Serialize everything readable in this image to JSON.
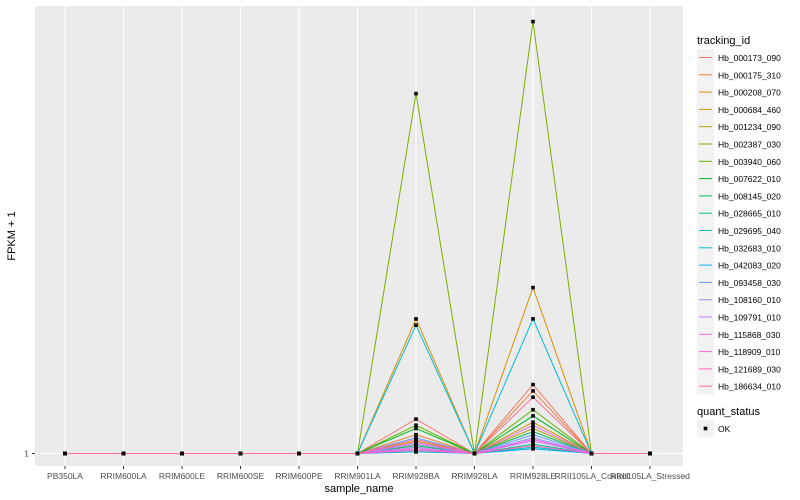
{
  "chart_data": {
    "type": "line",
    "title": "",
    "xlabel": "sample_name",
    "ylabel": "FPKM + 1",
    "categories": [
      "PB350LA",
      "RRIM600LA",
      "RRIM600LE",
      "RRIM600SE",
      "RRIM600PE",
      "RRIM901LA",
      "RRIM928BA",
      "RRIM928LA",
      "RRIM928LE",
      "RRII105LA_Control",
      "RRII105LA_Stressed"
    ],
    "y_ticks": [
      {
        "value": 1,
        "label": "1"
      }
    ],
    "ylim": [
      0.6,
      15.3
    ],
    "grid": true,
    "legend": {
      "title": "tracking_id",
      "position": "right",
      "shape_title": "quant_status",
      "shape_items": [
        "OK"
      ]
    },
    "series": [
      {
        "name": "Hb_000173_090",
        "color": "#F8766D",
        "values": [
          1,
          1,
          1,
          1,
          1,
          1,
          2.1,
          1,
          3.2,
          1,
          1
        ]
      },
      {
        "name": "Hb_000175_310",
        "color": "#EC8239",
        "values": [
          1,
          1,
          1,
          1,
          1,
          1,
          1.6,
          1,
          3.0,
          1,
          1
        ]
      },
      {
        "name": "Hb_000208_070",
        "color": "#DB8E00",
        "values": [
          1,
          1,
          1,
          1,
          1,
          1,
          5.3,
          1,
          6.3,
          1,
          1
        ]
      },
      {
        "name": "Hb_000684_460",
        "color": "#C79800",
        "values": [
          1,
          1,
          1,
          1,
          1,
          1,
          1.4,
          1,
          2.0,
          1,
          1
        ]
      },
      {
        "name": "Hb_001234_090",
        "color": "#AFA100",
        "values": [
          1,
          1,
          1,
          1,
          1,
          1,
          1.3,
          1,
          1.8,
          1,
          1
        ]
      },
      {
        "name": "Hb_002387_030",
        "color": "#7CAE00",
        "values": [
          1,
          1,
          1,
          1,
          1,
          1,
          12.5,
          1,
          14.8,
          1,
          1
        ]
      },
      {
        "name": "Hb_003940_060",
        "color": "#64B200",
        "values": [
          1,
          1,
          1,
          1,
          1,
          1,
          1.9,
          1,
          2.4,
          1,
          1
        ]
      },
      {
        "name": "Hb_007622_010",
        "color": "#00B81F",
        "values": [
          1,
          1,
          1,
          1,
          1,
          1,
          1.8,
          1,
          2.2,
          1,
          1
        ]
      },
      {
        "name": "Hb_008145_020",
        "color": "#00BC59",
        "values": [
          1,
          1,
          1,
          1,
          1,
          1,
          1.25,
          1,
          1.7,
          1,
          1
        ]
      },
      {
        "name": "Hb_028665_010",
        "color": "#00BF7D",
        "values": [
          1,
          1,
          1,
          1,
          1,
          1,
          1.15,
          1,
          1.3,
          1,
          1
        ]
      },
      {
        "name": "Hb_029695_040",
        "color": "#00C0B8",
        "values": [
          1,
          1,
          1,
          1,
          1,
          1,
          1.1,
          1,
          1.2,
          1,
          1
        ]
      },
      {
        "name": "Hb_032683_010",
        "color": "#00BCD8",
        "values": [
          1,
          1,
          1,
          1,
          1,
          1,
          5.1,
          1,
          5.3,
          1,
          1
        ]
      },
      {
        "name": "Hb_042083_020",
        "color": "#00B0F6",
        "values": [
          1,
          1,
          1,
          1,
          1,
          1,
          1.05,
          1,
          1.15,
          1,
          1
        ]
      },
      {
        "name": "Hb_093458_030",
        "color": "#619CFF",
        "values": [
          1,
          1,
          1,
          1,
          1,
          1,
          1.5,
          1,
          1.6,
          1,
          1
        ]
      },
      {
        "name": "Hb_108160_010",
        "color": "#9590FF",
        "values": [
          1,
          1,
          1,
          1,
          1,
          1,
          1.3,
          1,
          1.5,
          1,
          1
        ]
      },
      {
        "name": "Hb_109791_010",
        "color": "#C77CFF",
        "values": [
          1,
          1,
          1,
          1,
          1,
          1,
          1.2,
          1,
          1.4,
          1,
          1
        ]
      },
      {
        "name": "Hb_115868_030",
        "color": "#E76BF3",
        "values": [
          1,
          1,
          1,
          1,
          1,
          1,
          1.35,
          1,
          1.9,
          1,
          1
        ]
      },
      {
        "name": "Hb_118909_010",
        "color": "#FA62DB",
        "values": [
          1,
          1,
          1,
          1,
          1,
          1,
          1.15,
          1,
          1.45,
          1,
          1
        ]
      },
      {
        "name": "Hb_121689_030",
        "color": "#FF62BC",
        "values": [
          1,
          1,
          1,
          1,
          1,
          1,
          1.1,
          1,
          1.25,
          1,
          1
        ]
      },
      {
        "name": "Hb_186634_010",
        "color": "#FF6C91",
        "values": [
          1,
          1,
          1,
          1,
          1,
          1,
          1.45,
          1,
          2.8,
          1,
          1
        ]
      }
    ]
  }
}
